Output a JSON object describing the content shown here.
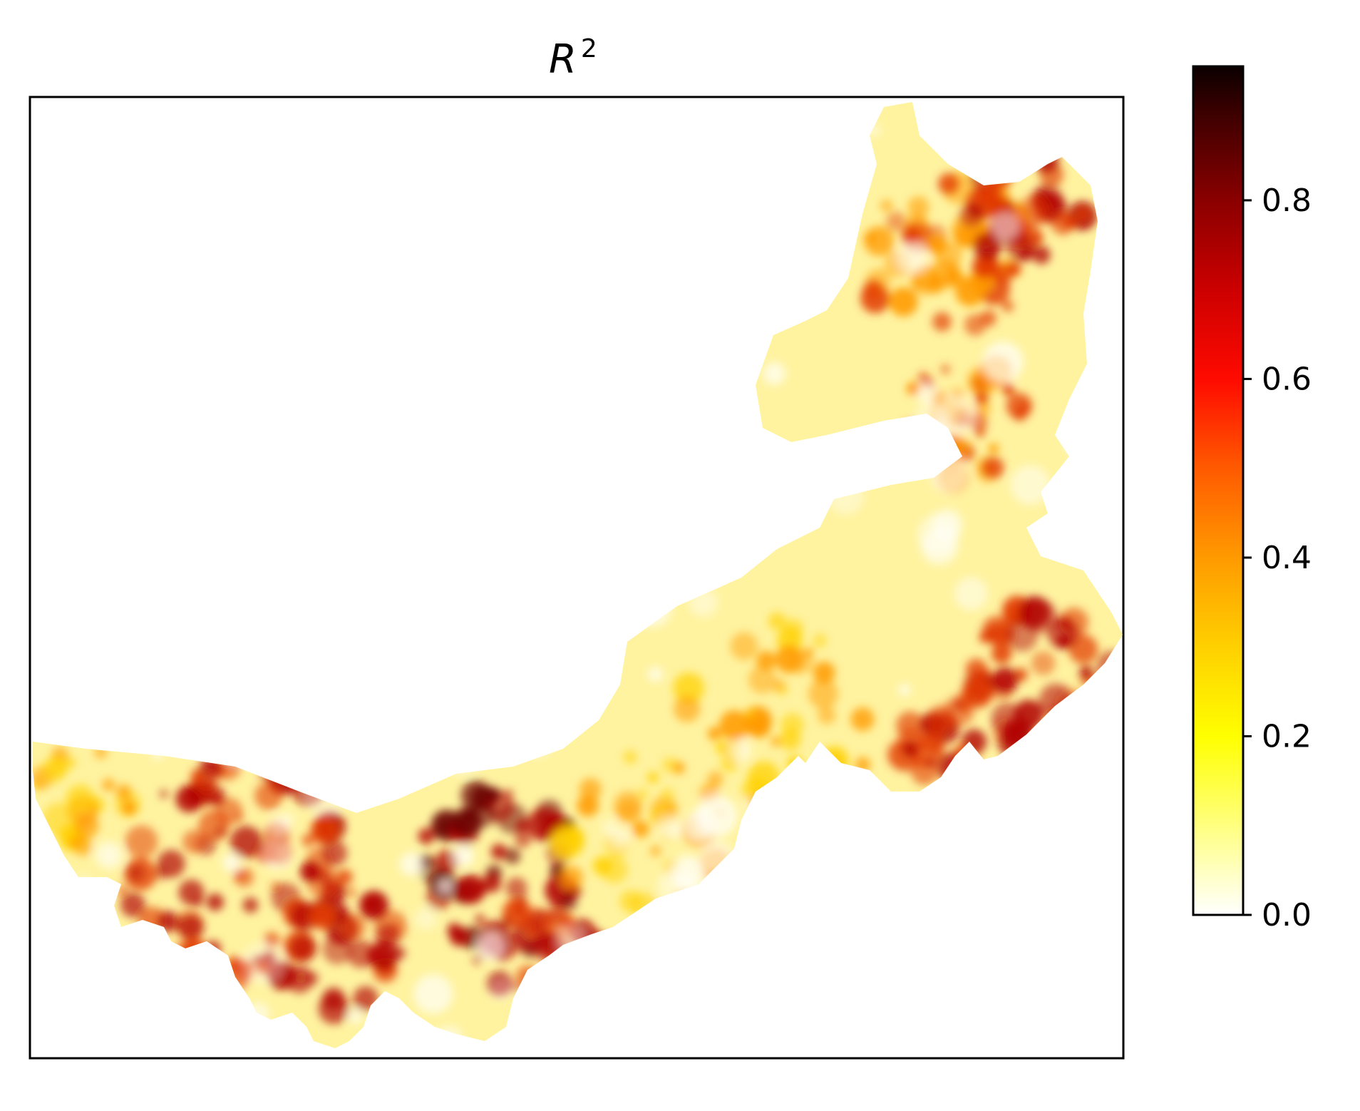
{
  "title": {
    "base": "R",
    "superscript": "2"
  },
  "colorbar": {
    "colormap": "hot_r",
    "min": 0.0,
    "max": 0.95,
    "ticks": [
      {
        "value": 0.0,
        "label": "0.0"
      },
      {
        "value": 0.2,
        "label": "0.2"
      },
      {
        "value": 0.4,
        "label": "0.4"
      },
      {
        "value": 0.6,
        "label": "0.6"
      },
      {
        "value": 0.8,
        "label": "0.8"
      }
    ],
    "stops": [
      {
        "value": 0.0,
        "color": "#ffffff"
      },
      {
        "value": 0.2,
        "color": "#ffff00"
      },
      {
        "value": 0.3,
        "color": "#ffd000"
      },
      {
        "value": 0.4,
        "color": "#ff9a00"
      },
      {
        "value": 0.5,
        "color": "#ff5a00"
      },
      {
        "value": 0.6,
        "color": "#ff0a00"
      },
      {
        "value": 0.7,
        "color": "#cc0000"
      },
      {
        "value": 0.8,
        "color": "#8a0000"
      },
      {
        "value": 0.9,
        "color": "#3a0000"
      },
      {
        "value": 0.95,
        "color": "#0b0000"
      }
    ]
  },
  "map": {
    "region_fill": "#fff3a0",
    "hotspot_colors": [
      "#ffd000",
      "#ff9a00",
      "#e23a00",
      "#b00000",
      "#6a0000"
    ]
  }
}
